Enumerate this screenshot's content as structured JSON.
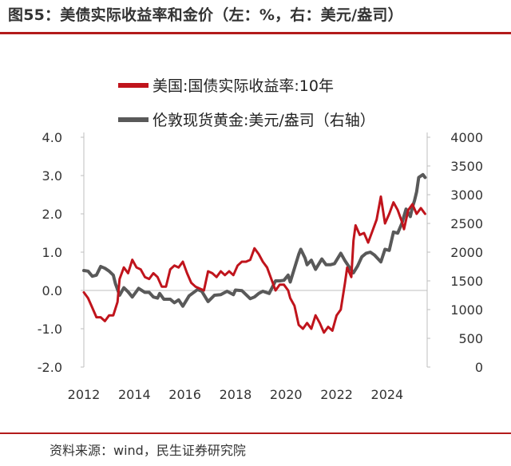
{
  "figure": {
    "title": "图55：美债实际收益率和金价（左：%，右：美元/盎司）",
    "source": "资料来源：wind，民生证券研究院"
  },
  "colors": {
    "red_series": "#c0141c",
    "gray_series": "#595959",
    "axis": "#bfbfbf",
    "rule": "#b31b1b"
  },
  "chart_data": {
    "type": "line",
    "x_ticks": [
      "2012",
      "2014",
      "2016",
      "2018",
      "2020",
      "2022",
      "2024"
    ],
    "xlim": [
      "2012-01",
      "2025-08"
    ],
    "y_left": {
      "ticks": [
        "4.0",
        "3.0",
        "2.0",
        "1.0",
        "0.0",
        "-1.0",
        "-2.0"
      ],
      "ylim": [
        -2,
        4
      ]
    },
    "y_right": {
      "ticks": [
        "4000",
        "3500",
        "3000",
        "2500",
        "2000",
        "1500",
        "1000",
        "500",
        "0"
      ],
      "ylim": [
        0,
        4000
      ]
    },
    "legend_position": "top-center",
    "series": [
      {
        "name": "美国:国债实际收益率:10年",
        "axis": "left",
        "color": "#c0141c",
        "points": [
          [
            "2012-01",
            -0.05
          ],
          [
            "2012-03",
            -0.2
          ],
          [
            "2012-05",
            -0.45
          ],
          [
            "2012-07",
            -0.7
          ],
          [
            "2012-09",
            -0.7
          ],
          [
            "2012-11",
            -0.8
          ],
          [
            "2013-01",
            -0.65
          ],
          [
            "2013-03",
            -0.65
          ],
          [
            "2013-05",
            -0.3
          ],
          [
            "2013-06",
            0.3
          ],
          [
            "2013-08",
            0.6
          ],
          [
            "2013-10",
            0.45
          ],
          [
            "2013-12",
            0.8
          ],
          [
            "2014-02",
            0.6
          ],
          [
            "2014-04",
            0.55
          ],
          [
            "2014-06",
            0.35
          ],
          [
            "2014-08",
            0.3
          ],
          [
            "2014-10",
            0.45
          ],
          [
            "2014-12",
            0.35
          ],
          [
            "2015-02",
            0.1
          ],
          [
            "2015-04",
            0.1
          ],
          [
            "2015-06",
            0.55
          ],
          [
            "2015-08",
            0.65
          ],
          [
            "2015-10",
            0.6
          ],
          [
            "2015-12",
            0.75
          ],
          [
            "2016-02",
            0.45
          ],
          [
            "2016-04",
            0.2
          ],
          [
            "2016-06",
            0.1
          ],
          [
            "2016-08",
            0.05
          ],
          [
            "2016-10",
            0.0
          ],
          [
            "2016-12",
            0.5
          ],
          [
            "2017-02",
            0.45
          ],
          [
            "2017-04",
            0.35
          ],
          [
            "2017-06",
            0.5
          ],
          [
            "2017-08",
            0.4
          ],
          [
            "2017-10",
            0.5
          ],
          [
            "2017-12",
            0.4
          ],
          [
            "2018-02",
            0.65
          ],
          [
            "2018-04",
            0.75
          ],
          [
            "2018-06",
            0.75
          ],
          [
            "2018-08",
            0.8
          ],
          [
            "2018-10",
            1.1
          ],
          [
            "2018-12",
            0.95
          ],
          [
            "2019-02",
            0.75
          ],
          [
            "2019-04",
            0.6
          ],
          [
            "2019-06",
            0.3
          ],
          [
            "2019-08",
            0.0
          ],
          [
            "2019-10",
            0.15
          ],
          [
            "2019-12",
            0.15
          ],
          [
            "2020-02",
            0.0
          ],
          [
            "2020-03",
            -0.2
          ],
          [
            "2020-05",
            -0.4
          ],
          [
            "2020-07",
            -0.9
          ],
          [
            "2020-09",
            -1.0
          ],
          [
            "2020-11",
            -0.85
          ],
          [
            "2021-01",
            -1.0
          ],
          [
            "2021-03",
            -0.65
          ],
          [
            "2021-05",
            -0.85
          ],
          [
            "2021-07",
            -1.1
          ],
          [
            "2021-09",
            -0.95
          ],
          [
            "2021-11",
            -1.05
          ],
          [
            "2022-01",
            -0.65
          ],
          [
            "2022-03",
            -0.5
          ],
          [
            "2022-05",
            0.2
          ],
          [
            "2022-06",
            0.6
          ],
          [
            "2022-08",
            0.35
          ],
          [
            "2022-09",
            1.3
          ],
          [
            "2022-10",
            1.7
          ],
          [
            "2022-12",
            1.45
          ],
          [
            "2023-02",
            1.5
          ],
          [
            "2023-04",
            1.25
          ],
          [
            "2023-06",
            1.55
          ],
          [
            "2023-08",
            1.85
          ],
          [
            "2023-10",
            2.45
          ],
          [
            "2023-12",
            1.75
          ],
          [
            "2024-02",
            2.0
          ],
          [
            "2024-04",
            2.3
          ],
          [
            "2024-06",
            2.1
          ],
          [
            "2024-08",
            1.8
          ],
          [
            "2024-09",
            1.6
          ],
          [
            "2024-11",
            2.1
          ],
          [
            "2025-01",
            2.25
          ],
          [
            "2025-03",
            2.0
          ],
          [
            "2025-05",
            2.15
          ],
          [
            "2025-07",
            2.0
          ]
        ]
      },
      {
        "name": "伦敦现货黄金:美元/盎司（右轴）",
        "axis": "right",
        "color": "#595959",
        "points": [
          [
            "2012-01",
            1680
          ],
          [
            "2012-03",
            1670
          ],
          [
            "2012-05",
            1580
          ],
          [
            "2012-07",
            1600
          ],
          [
            "2012-09",
            1750
          ],
          [
            "2012-11",
            1720
          ],
          [
            "2013-01",
            1670
          ],
          [
            "2013-03",
            1600
          ],
          [
            "2013-04",
            1450
          ],
          [
            "2013-06",
            1250
          ],
          [
            "2013-08",
            1380
          ],
          [
            "2013-10",
            1310
          ],
          [
            "2013-12",
            1220
          ],
          [
            "2014-02",
            1320
          ],
          [
            "2014-03",
            1370
          ],
          [
            "2014-06",
            1300
          ],
          [
            "2014-08",
            1300
          ],
          [
            "2014-10",
            1220
          ],
          [
            "2014-12",
            1200
          ],
          [
            "2015-01",
            1280
          ],
          [
            "2015-03",
            1180
          ],
          [
            "2015-06",
            1180
          ],
          [
            "2015-08",
            1120
          ],
          [
            "2015-10",
            1170
          ],
          [
            "2015-12",
            1060
          ],
          [
            "2016-03",
            1240
          ],
          [
            "2016-07",
            1350
          ],
          [
            "2016-09",
            1320
          ],
          [
            "2016-12",
            1140
          ],
          [
            "2017-03",
            1250
          ],
          [
            "2017-06",
            1260
          ],
          [
            "2017-09",
            1320
          ],
          [
            "2017-12",
            1260
          ],
          [
            "2018-01",
            1340
          ],
          [
            "2018-04",
            1330
          ],
          [
            "2018-08",
            1190
          ],
          [
            "2018-10",
            1220
          ],
          [
            "2018-12",
            1280
          ],
          [
            "2019-02",
            1320
          ],
          [
            "2019-05",
            1280
          ],
          [
            "2019-08",
            1500
          ],
          [
            "2019-10",
            1500
          ],
          [
            "2019-12",
            1510
          ],
          [
            "2020-02",
            1600
          ],
          [
            "2020-03",
            1480
          ],
          [
            "2020-05",
            1720
          ],
          [
            "2020-07",
            1960
          ],
          [
            "2020-08",
            2050
          ],
          [
            "2020-10",
            1900
          ],
          [
            "2020-11",
            1780
          ],
          [
            "2021-01",
            1860
          ],
          [
            "2021-03",
            1700
          ],
          [
            "2021-06",
            1880
          ],
          [
            "2021-08",
            1780
          ],
          [
            "2021-10",
            1780
          ],
          [
            "2021-12",
            1800
          ],
          [
            "2022-03",
            1980
          ],
          [
            "2022-05",
            1850
          ],
          [
            "2022-07",
            1740
          ],
          [
            "2022-09",
            1640
          ],
          [
            "2022-11",
            1760
          ],
          [
            "2023-01",
            1920
          ],
          [
            "2023-03",
            1980
          ],
          [
            "2023-05",
            2000
          ],
          [
            "2023-07",
            1950
          ],
          [
            "2023-10",
            1830
          ],
          [
            "2023-12",
            2050
          ],
          [
            "2024-02",
            2030
          ],
          [
            "2024-04",
            2350
          ],
          [
            "2024-06",
            2330
          ],
          [
            "2024-08",
            2500
          ],
          [
            "2024-10",
            2750
          ],
          [
            "2024-12",
            2620
          ],
          [
            "2025-01",
            2780
          ],
          [
            "2025-02",
            2900
          ],
          [
            "2025-03",
            3050
          ],
          [
            "2025-04",
            3300
          ],
          [
            "2025-06",
            3350
          ],
          [
            "2025-07",
            3300
          ]
        ]
      }
    ]
  }
}
